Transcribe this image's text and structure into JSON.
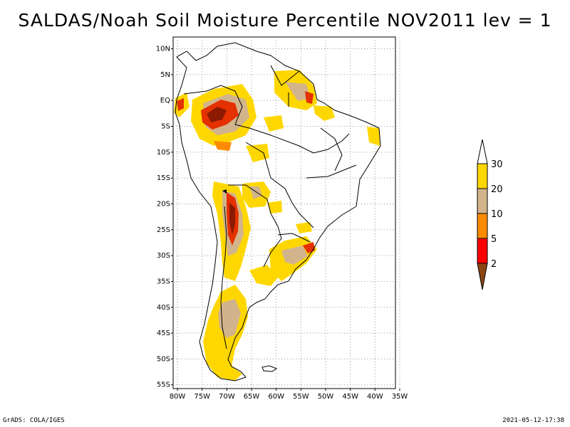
{
  "title": "SALDAS/Noah Soil Moisture Percentile NOV2011 lev = 1",
  "map": {
    "lat_labels": [
      "10N",
      "5N",
      "EQ",
      "5S",
      "10S",
      "15S",
      "20S",
      "25S",
      "30S",
      "35S",
      "40S",
      "45S",
      "50S",
      "55S"
    ],
    "lon_labels": [
      "80W",
      "75W",
      "70W",
      "65W",
      "60W",
      "55W",
      "50W",
      "45W",
      "40W",
      "35W"
    ],
    "lon_extent": [
      -80,
      -35
    ],
    "lat_extent": [
      -56,
      12
    ],
    "grid": true
  },
  "colorbar": {
    "labels": [
      "30",
      "20",
      "10",
      "5",
      "2"
    ],
    "bins": [
      {
        "range": "30+",
        "color": "#ffffff"
      },
      {
        "range": "20-30",
        "color": "#ffd700"
      },
      {
        "range": "10-20",
        "color": "#d2b48c"
      },
      {
        "range": "5-10",
        "color": "#ff8c00"
      },
      {
        "range": "2-5",
        "color": "#ff0000"
      },
      {
        "range": "<2",
        "color": "#8b4513"
      }
    ]
  },
  "footer": {
    "left": "GrADS: COLA/IGES",
    "right": "2021-05-12-17:38"
  }
}
